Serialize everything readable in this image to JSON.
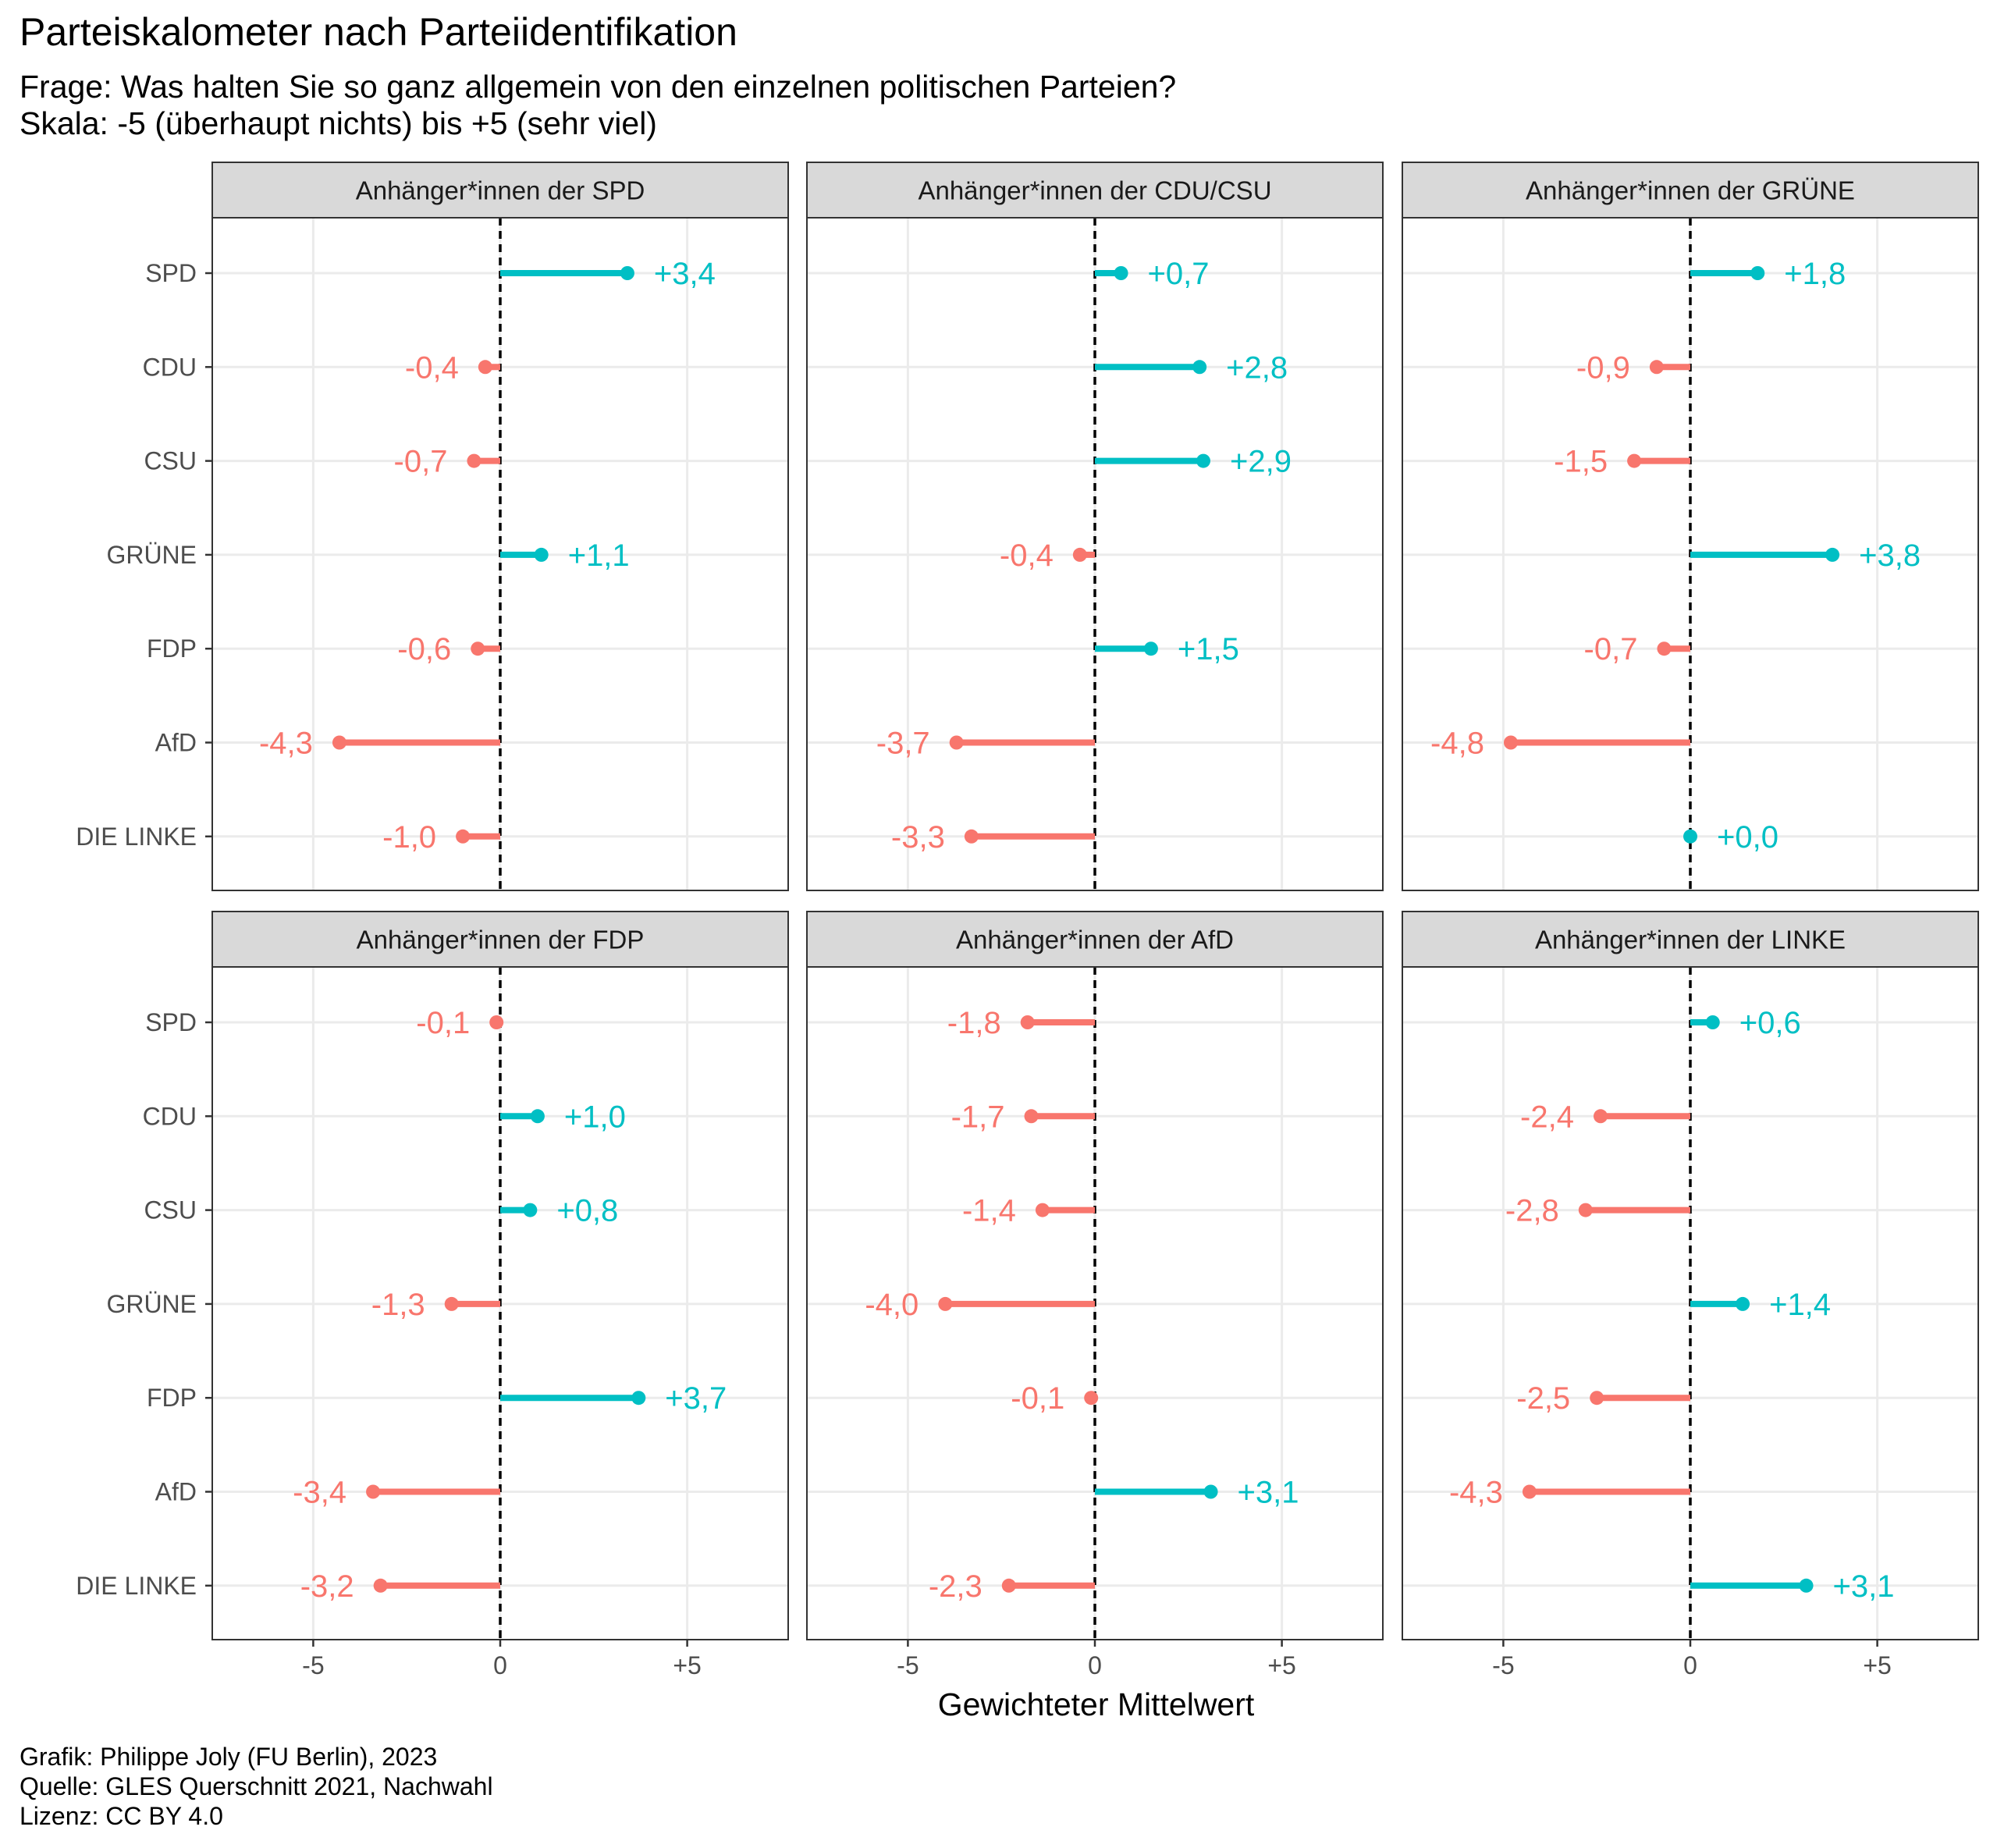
{
  "title": "Parteiskalometer nach Parteiidentifikation",
  "subtitle_line1": "Frage: Was halten Sie so ganz allgemein von den einzelnen politischen Parteien?",
  "subtitle_line2": "Skala: -5 (überhaupt nichts) bis +5 (sehr viel)",
  "x_axis_label": "Gewichteter Mittelwert",
  "caption": {
    "line1": "Grafik: Philippe Joly (FU Berlin), 2023",
    "line2": "Quelle: GLES Querschnitt 2021, Nachwahl",
    "line3": "Lizenz: CC BY 4.0"
  },
  "colors": {
    "positive": "#00BFC4",
    "negative": "#F8766D",
    "strip_bg": "#D9D9D9",
    "grid": "#EBEBEB",
    "panel_border": "#333333"
  },
  "chart_data": {
    "type": "lollipop",
    "categories": [
      "SPD",
      "CDU",
      "CSU",
      "GRÜNE",
      "FDP",
      "AfD",
      "DIE LINKE"
    ],
    "xlim": [
      -7.7,
      7.7
    ],
    "x_ticks": [
      -5,
      0,
      5
    ],
    "x_tick_labels": [
      "-5",
      "0",
      "+5"
    ],
    "reference_line": 0,
    "grid": true,
    "facets": [
      {
        "label": "Anhänger*innen der SPD",
        "values": [
          3.4,
          -0.4,
          -0.7,
          1.1,
          -0.6,
          -4.3,
          -1.0
        ],
        "value_labels": [
          "+3,4",
          "-0,4",
          "-0,7",
          "+1,1",
          "-0,6",
          "-4,3",
          "-1,0"
        ]
      },
      {
        "label": "Anhänger*innen der CDU/CSU",
        "values": [
          0.7,
          2.8,
          2.9,
          -0.4,
          1.5,
          -3.7,
          -3.3
        ],
        "value_labels": [
          "+0,7",
          "+2,8",
          "+2,9",
          "-0,4",
          "+1,5",
          "-3,7",
          "-3,3"
        ]
      },
      {
        "label": "Anhänger*innen der GRÜNE",
        "values": [
          1.8,
          -0.9,
          -1.5,
          3.8,
          -0.7,
          -4.8,
          0.0
        ],
        "value_labels": [
          "+1,8",
          "-0,9",
          "-1,5",
          "+3,8",
          "-0,7",
          "-4,8",
          "+0,0"
        ]
      },
      {
        "label": "Anhänger*innen der FDP",
        "values": [
          -0.1,
          1.0,
          0.8,
          -1.3,
          3.7,
          -3.4,
          -3.2
        ],
        "value_labels": [
          "-0,1",
          "+1,0",
          "+0,8",
          "-1,3",
          "+3,7",
          "-3,4",
          "-3,2"
        ]
      },
      {
        "label": "Anhänger*innen der AfD",
        "values": [
          -1.8,
          -1.7,
          -1.4,
          -4.0,
          -0.1,
          3.1,
          -2.3
        ],
        "value_labels": [
          "-1,8",
          "-1,7",
          "-1,4",
          "-4,0",
          "-0,1",
          "+3,1",
          "-2,3"
        ]
      },
      {
        "label": "Anhänger*innen der LINKE",
        "values": [
          0.6,
          -2.4,
          -2.8,
          1.4,
          -2.5,
          -4.3,
          3.1
        ],
        "value_labels": [
          "+0,6",
          "-2,4",
          "-2,8",
          "+1,4",
          "-2,5",
          "-4,3",
          "+3,1"
        ]
      }
    ]
  }
}
